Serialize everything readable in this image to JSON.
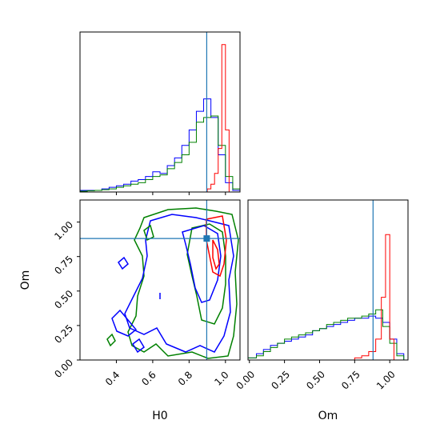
{
  "chart_data": {
    "type": "corner",
    "truth": {
      "H0": 0.897,
      "Om": 0.881,
      "color": "#1f77b4"
    },
    "series_colors": {
      "red": "#ff0000",
      "blue": "#0000ff",
      "green": "#008000"
    },
    "hist_H0": {
      "x_range": [
        0.2,
        1.08
      ],
      "bins": [
        0.2,
        0.24,
        0.28,
        0.32,
        0.36,
        0.4,
        0.44,
        0.48,
        0.52,
        0.56,
        0.6,
        0.64,
        0.68,
        0.72,
        0.76,
        0.8,
        0.84,
        0.88,
        0.92,
        0.96,
        1.0,
        1.04,
        1.08
      ],
      "blue": [
        0.01,
        0.01,
        0.01,
        0.02,
        0.03,
        0.04,
        0.05,
        0.07,
        0.08,
        0.1,
        0.13,
        0.12,
        0.17,
        0.22,
        0.3,
        0.4,
        0.52,
        0.6,
        0.48,
        0.24,
        0.06,
        0.01
      ],
      "green": [
        0.005,
        0.008,
        0.01,
        0.015,
        0.02,
        0.03,
        0.04,
        0.05,
        0.06,
        0.08,
        0.1,
        0.11,
        0.15,
        0.19,
        0.24,
        0.32,
        0.45,
        0.48,
        0.49,
        0.3,
        0.1,
        0.02
      ],
      "red_x": [
        0.88,
        0.9,
        0.92,
        0.94,
        0.96,
        0.98,
        1.0,
        1.02
      ],
      "red": [
        0.0,
        0.02,
        0.05,
        0.12,
        0.28,
        0.95,
        0.4,
        0.0
      ]
    },
    "hist_Om": {
      "x_range": [
        -0.01,
        1.13
      ],
      "xlabel": "Om",
      "xticks": [
        "0.00",
        "0.25",
        "0.50",
        "0.75",
        "1.00"
      ],
      "bins": [
        -0.01,
        0.05,
        0.1,
        0.15,
        0.2,
        0.25,
        0.3,
        0.35,
        0.4,
        0.45,
        0.5,
        0.55,
        0.6,
        0.65,
        0.7,
        0.75,
        0.8,
        0.85,
        0.9,
        0.95,
        1.0,
        1.05,
        1.1
      ],
      "blue": [
        0.01,
        0.03,
        0.05,
        0.07,
        0.08,
        0.09,
        0.1,
        0.11,
        0.12,
        0.14,
        0.15,
        0.16,
        0.17,
        0.18,
        0.19,
        0.2,
        0.2,
        0.21,
        0.2,
        0.18,
        0.1,
        0.03
      ],
      "green": [
        0.01,
        0.02,
        0.04,
        0.06,
        0.08,
        0.1,
        0.11,
        0.12,
        0.13,
        0.14,
        0.15,
        0.17,
        0.18,
        0.19,
        0.2,
        0.2,
        0.21,
        0.22,
        0.24,
        0.16,
        0.08,
        0.02
      ],
      "red_x": [
        0.7,
        0.75,
        0.8,
        0.85,
        0.9,
        0.94,
        0.97,
        1.0,
        1.03
      ],
      "red": [
        0.0,
        0.01,
        0.02,
        0.04,
        0.1,
        0.3,
        0.6,
        0.1,
        0.0
      ]
    },
    "scatter": {
      "x_range": [
        0.2,
        1.08
      ],
      "y_range": [
        0.0,
        1.16
      ],
      "xlabel": "H0",
      "ylabel": "Om",
      "xticks": [
        "0.4",
        "0.6",
        "0.8",
        "1.0"
      ],
      "yticks": [
        "0.00",
        "0.25",
        "0.50",
        "0.75",
        "1.00"
      ]
    }
  }
}
